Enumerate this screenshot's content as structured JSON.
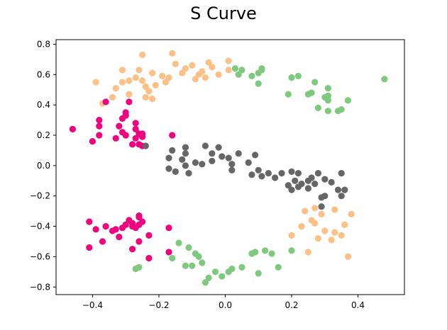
{
  "chart_data": {
    "type": "scatter",
    "title": "S Curve",
    "xlabel": "",
    "ylabel": "",
    "xlim": [
      -0.51,
      0.54
    ],
    "ylim": [
      -0.85,
      0.83
    ],
    "xticks": [
      -0.4,
      -0.2,
      0.0,
      0.2,
      0.4
    ],
    "yticks": [
      -0.8,
      -0.6,
      -0.4,
      -0.2,
      0.0,
      0.2,
      0.4,
      0.6,
      0.8
    ],
    "grid": false,
    "legend": "none",
    "colors": {
      "orange": "#fdc086",
      "green": "#7fc97f",
      "magenta": "#f0027f",
      "gray": "#666666"
    },
    "series": [
      {
        "color_key": "orange",
        "points": [
          [
            -0.39,
            0.55
          ],
          [
            -0.37,
            0.41
          ],
          [
            -0.34,
            0.45
          ],
          [
            -0.33,
            0.51
          ],
          [
            -0.31,
            0.55
          ],
          [
            -0.31,
            0.63
          ],
          [
            -0.29,
            0.56
          ],
          [
            -0.29,
            0.47
          ],
          [
            -0.27,
            0.58
          ],
          [
            -0.26,
            0.63
          ],
          [
            -0.25,
            0.73
          ],
          [
            -0.25,
            0.56
          ],
          [
            -0.24,
            0.52
          ],
          [
            -0.24,
            0.45
          ],
          [
            -0.23,
            0.49
          ],
          [
            -0.22,
            0.61
          ],
          [
            -0.22,
            0.44
          ],
          [
            -0.21,
            0.53
          ],
          [
            -0.19,
            0.59
          ],
          [
            -0.18,
            0.55
          ],
          [
            -0.17,
            0.58
          ],
          [
            -0.16,
            0.74
          ],
          [
            -0.15,
            0.67
          ],
          [
            -0.13,
            0.61
          ],
          [
            -0.12,
            0.64
          ],
          [
            -0.1,
            0.66
          ],
          [
            -0.09,
            0.57
          ],
          [
            -0.08,
            0.6
          ],
          [
            -0.07,
            0.62
          ],
          [
            -0.06,
            0.58
          ],
          [
            -0.05,
            0.68
          ],
          [
            -0.04,
            0.65
          ],
          [
            -0.02,
            0.6
          ],
          [
            0.01,
            0.69
          ],
          [
            0.01,
            0.63
          ],
          [
            0.2,
            -0.46
          ],
          [
            0.23,
            -0.4
          ],
          [
            0.24,
            -0.3
          ],
          [
            0.25,
            -0.57
          ],
          [
            0.26,
            -0.36
          ],
          [
            0.27,
            -0.38
          ],
          [
            0.27,
            -0.28
          ],
          [
            0.28,
            -0.48
          ],
          [
            0.29,
            -0.32
          ],
          [
            0.3,
            -0.43
          ],
          [
            0.32,
            -0.49
          ],
          [
            0.33,
            -0.29
          ],
          [
            0.33,
            -0.44
          ],
          [
            0.35,
            -0.46
          ],
          [
            0.36,
            -0.39
          ],
          [
            0.37,
            -0.6
          ],
          [
            0.38,
            -0.32
          ]
        ]
      },
      {
        "color_key": "green",
        "points": [
          [
            0.03,
            0.64
          ],
          [
            0.04,
            0.6
          ],
          [
            0.05,
            0.63
          ],
          [
            0.08,
            0.59
          ],
          [
            0.1,
            0.54
          ],
          [
            0.1,
            0.61
          ],
          [
            0.11,
            0.63
          ],
          [
            0.11,
            0.64
          ],
          [
            0.19,
            0.47
          ],
          [
            0.2,
            0.58
          ],
          [
            0.22,
            0.59
          ],
          [
            0.25,
            0.47
          ],
          [
            0.26,
            0.48
          ],
          [
            0.27,
            0.55
          ],
          [
            0.28,
            0.38
          ],
          [
            0.3,
            0.45
          ],
          [
            0.31,
            0.43
          ],
          [
            0.31,
            0.36
          ],
          [
            0.31,
            0.46
          ],
          [
            0.31,
            0.51
          ],
          [
            0.34,
            0.36
          ],
          [
            0.35,
            0.37
          ],
          [
            0.37,
            0.43
          ],
          [
            0.48,
            0.57
          ],
          [
            -0.16,
            -0.61
          ],
          [
            -0.14,
            -0.51
          ],
          [
            -0.12,
            -0.66
          ],
          [
            -0.11,
            -0.54
          ],
          [
            -0.1,
            -0.66
          ],
          [
            -0.09,
            -0.58
          ],
          [
            -0.08,
            -0.6
          ],
          [
            -0.07,
            -0.64
          ],
          [
            -0.06,
            -0.77
          ],
          [
            -0.05,
            -0.74
          ],
          [
            -0.03,
            -0.7
          ],
          [
            -0.01,
            -0.73
          ],
          [
            0.01,
            -0.7
          ],
          [
            0.02,
            -0.68
          ],
          [
            0.05,
            -0.67
          ],
          [
            0.08,
            -0.58
          ],
          [
            0.09,
            -0.57
          ],
          [
            0.1,
            -0.71
          ],
          [
            0.12,
            -0.56
          ],
          [
            0.14,
            -0.58
          ],
          [
            0.16,
            -0.67
          ],
          [
            0.2,
            -0.56
          ],
          [
            -0.27,
            -0.68
          ],
          [
            -0.26,
            -0.67
          ]
        ]
      },
      {
        "color_key": "magenta",
        "points": [
          [
            -0.46,
            0.24
          ],
          [
            -0.4,
            0.16
          ],
          [
            -0.38,
            0.2
          ],
          [
            -0.38,
            0.26
          ],
          [
            -0.38,
            0.3
          ],
          [
            -0.36,
            0.42
          ],
          [
            -0.33,
            0.18
          ],
          [
            -0.32,
            0.26
          ],
          [
            -0.31,
            0.22
          ],
          [
            -0.31,
            0.31
          ],
          [
            -0.3,
            0.2
          ],
          [
            -0.3,
            0.33
          ],
          [
            -0.3,
            0.35
          ],
          [
            -0.29,
            0.42
          ],
          [
            -0.28,
            0.14
          ],
          [
            -0.27,
            0.28
          ],
          [
            -0.27,
            0.24
          ],
          [
            -0.27,
            0.18
          ],
          [
            -0.26,
            0.21
          ],
          [
            -0.26,
            0.14
          ],
          [
            -0.25,
            0.13
          ],
          [
            -0.25,
            0.21
          ],
          [
            -0.16,
            0.2
          ],
          [
            -0.25,
            0.19
          ],
          [
            -0.41,
            -0.37
          ],
          [
            -0.41,
            -0.54
          ],
          [
            -0.39,
            -0.42
          ],
          [
            -0.37,
            -0.5
          ],
          [
            -0.36,
            -0.4
          ],
          [
            -0.34,
            -0.43
          ],
          [
            -0.33,
            -0.42
          ],
          [
            -0.32,
            -0.47
          ],
          [
            -0.31,
            -0.41
          ],
          [
            -0.3,
            -0.39
          ],
          [
            -0.29,
            -0.36
          ],
          [
            -0.28,
            -0.38
          ],
          [
            -0.28,
            -0.55
          ],
          [
            -0.28,
            -0.4
          ],
          [
            -0.27,
            -0.41
          ],
          [
            -0.26,
            -0.39
          ],
          [
            -0.26,
            -0.33
          ],
          [
            -0.26,
            -0.5
          ],
          [
            -0.25,
            -0.37
          ],
          [
            -0.23,
            -0.46
          ],
          [
            -0.23,
            -0.61
          ],
          [
            -0.17,
            -0.41
          ],
          [
            -0.17,
            -0.57
          ],
          [
            -0.26,
            -0.34
          ]
        ]
      },
      {
        "color_key": "gray",
        "points": [
          [
            -0.24,
            0.13
          ],
          [
            -0.17,
            0.05
          ],
          [
            -0.17,
            -0.02
          ],
          [
            -0.16,
            0.1
          ],
          [
            -0.15,
            -0.04
          ],
          [
            -0.13,
            0.04
          ],
          [
            -0.12,
            0.12
          ],
          [
            -0.12,
            0.08
          ],
          [
            -0.12,
            0.0
          ],
          [
            -0.11,
            -0.05
          ],
          [
            -0.09,
            0.02
          ],
          [
            -0.07,
            0.01
          ],
          [
            -0.06,
            0.13
          ],
          [
            -0.04,
            0.08
          ],
          [
            -0.04,
            0.03
          ],
          [
            -0.02,
            0.12
          ],
          [
            -0.01,
            0.06
          ],
          [
            0.01,
            0.05
          ],
          [
            0.02,
            0.01
          ],
          [
            0.02,
            -0.03
          ],
          [
            0.04,
            0.08
          ],
          [
            0.07,
            0.02
          ],
          [
            0.08,
            -0.06
          ],
          [
            0.09,
            0.07
          ],
          [
            0.1,
            -0.03
          ],
          [
            0.11,
            -0.07
          ],
          [
            0.13,
            -0.05
          ],
          [
            0.15,
            -0.08
          ],
          [
            0.17,
            -0.05
          ],
          [
            0.19,
            -0.13
          ],
          [
            0.2,
            -0.04
          ],
          [
            0.2,
            -0.16
          ],
          [
            0.21,
            -0.1
          ],
          [
            0.22,
            -0.05
          ],
          [
            0.22,
            -0.14
          ],
          [
            0.23,
            -0.12
          ],
          [
            0.25,
            -0.15
          ],
          [
            0.25,
            -0.1
          ],
          [
            0.26,
            -0.08
          ],
          [
            0.27,
            -0.12
          ],
          [
            0.28,
            -0.05
          ],
          [
            0.29,
            -0.21
          ],
          [
            0.29,
            -0.27
          ],
          [
            0.3,
            -0.2
          ],
          [
            0.3,
            -0.09
          ],
          [
            0.32,
            -0.11
          ],
          [
            0.34,
            -0.16
          ],
          [
            0.35,
            -0.2
          ],
          [
            0.36,
            -0.16
          ],
          [
            0.35,
            -0.05
          ]
        ]
      }
    ]
  }
}
